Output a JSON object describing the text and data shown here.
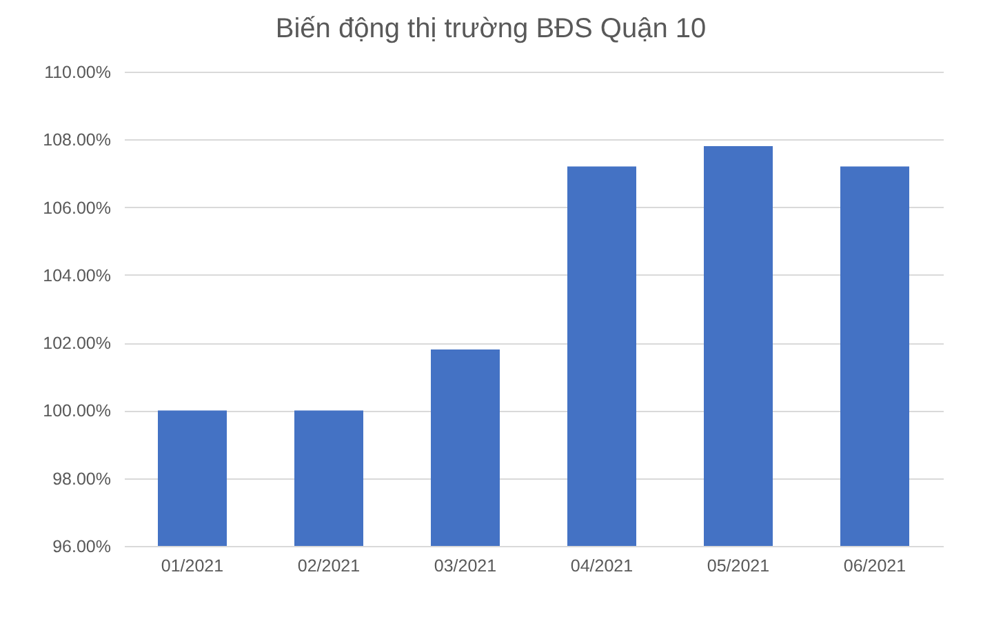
{
  "chart_data": {
    "type": "bar",
    "title": "Biến động thị trường BĐS Quận 10",
    "categories": [
      "01/2021",
      "02/2021",
      "03/2021",
      "04/2021",
      "05/2021",
      "06/2021"
    ],
    "values": [
      100,
      100,
      101.8,
      107.2,
      107.8,
      107.2
    ],
    "color": "#4472c4",
    "ylim": [
      96,
      110
    ],
    "yticks": [
      {
        "value": 96,
        "label": "96.00%"
      },
      {
        "value": 98,
        "label": "98.00%"
      },
      {
        "value": 100,
        "label": "100.00%"
      },
      {
        "value": 102,
        "label": "102.00%"
      },
      {
        "value": 104,
        "label": "104.00%"
      },
      {
        "value": 106,
        "label": "106.00%"
      },
      {
        "value": 108,
        "label": "108.00%"
      },
      {
        "value": 110,
        "label": "110.00%"
      }
    ],
    "grid": "y"
  }
}
